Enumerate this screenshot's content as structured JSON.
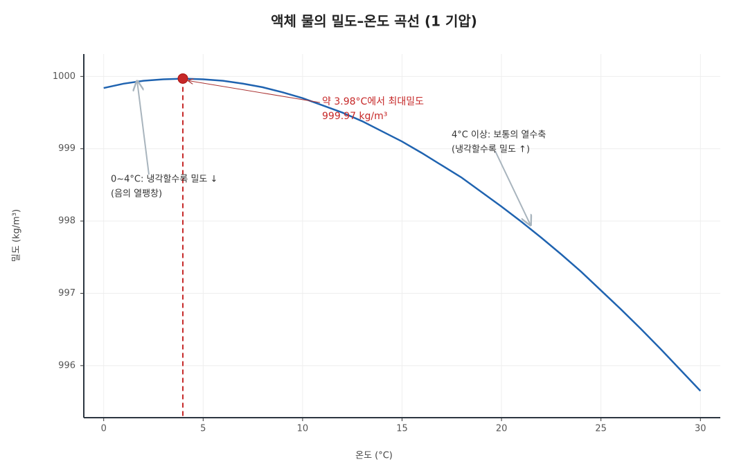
{
  "chart_data": {
    "type": "line",
    "title": "액체 물의 밀도–온도 곡선 (1 기압)",
    "x_label": "온도 (°C)",
    "y_label": "밀도 (kg/m³)",
    "x": [
      0,
      1,
      2,
      3,
      4,
      5,
      6,
      7,
      8,
      9,
      10,
      11,
      12,
      13,
      14,
      15,
      16,
      17,
      18,
      19,
      20,
      21,
      22,
      23,
      24,
      25,
      26,
      27,
      28,
      29,
      30
    ],
    "values": [
      999.84,
      999.9,
      999.94,
      999.96,
      999.97,
      999.96,
      999.94,
      999.9,
      999.85,
      999.78,
      999.7,
      999.6,
      999.5,
      999.38,
      999.24,
      999.1,
      998.94,
      998.77,
      998.6,
      998.4,
      998.2,
      997.99,
      997.77,
      997.54,
      997.3,
      997.04,
      996.78,
      996.51,
      996.23,
      995.94,
      995.65
    ],
    "color": "#1f63b0",
    "xlim": [
      -1,
      31
    ],
    "ylim": [
      995.28,
      1000.31
    ],
    "xticks": [
      0,
      5,
      10,
      15,
      20,
      25,
      30
    ],
    "yticks": [
      996,
      997,
      998,
      999,
      1000
    ],
    "grid": true,
    "max_point": {
      "x": 3.98,
      "y": 999.97,
      "color": "#c62828"
    },
    "annotations": [
      {
        "lines": [
          "약 3.98°C에서 최대밀도",
          "999.97 kg/m³"
        ]
      },
      {
        "lines": [
          "0~4°C: 냉각할수록 밀도 ↓",
          "(음의 열팽창)"
        ]
      },
      {
        "lines": [
          "4°C 이상: 보통의 열수축",
          "(냉각할수록 밀도 ↑)"
        ]
      }
    ]
  }
}
